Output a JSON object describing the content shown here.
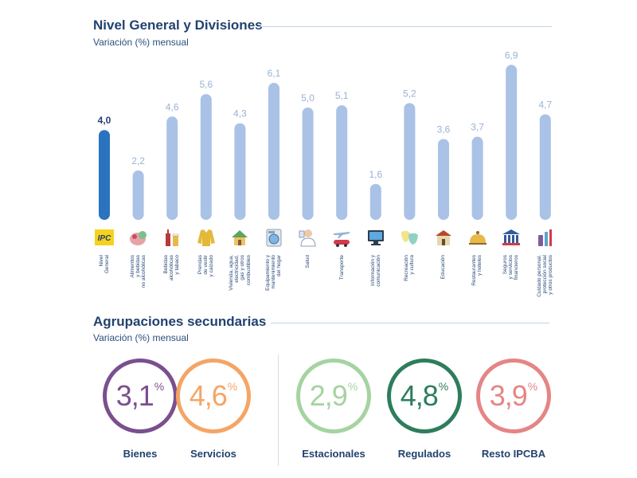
{
  "header": {
    "title": "Nivel General y Divisiones",
    "subtitle": "Variación (%) mensual"
  },
  "chart_data": {
    "type": "bar",
    "categories": [
      "Nivel\nGeneral",
      "Alimentos\ny bebidas\nno alcohólicas",
      "Bebidas\nalcohólicas\ny tabaco",
      "Prendas\nde vestir\ny calzado",
      "Vivienda, agua,\nelectricidad,\ngas y otros\ncombustibles",
      "Equipamiento y\nmantenimiento\ndel hogar",
      "Salud",
      "Transporte",
      "Información y\ncomunicación",
      "Recreación\ny cultura",
      "Educación",
      "Restaurantes\ny hoteles",
      "Seguros\ny servicios\nfinancieros",
      "Cuidado personal,\nprotección social\ny otros productos"
    ],
    "values": [
      4.0,
      2.2,
      4.6,
      5.6,
      4.3,
      6.1,
      5.0,
      5.1,
      1.6,
      5.2,
      3.6,
      3.7,
      6.9,
      4.7
    ],
    "value_labels": [
      "4,0",
      "2,2",
      "4,6",
      "5,6",
      "4,3",
      "6,1",
      "5,0",
      "5,1",
      "1,6",
      "5,2",
      "3,6",
      "3,7",
      "6,9",
      "4,7"
    ],
    "highlight_index": 0,
    "ylim": [
      0,
      7
    ],
    "grid": false,
    "colors": {
      "highlight": "#2a73be",
      "highlight_label": "#1f3f73",
      "bar": "#a9c2e6",
      "bar_label": "#9ab1d6"
    },
    "icons": [
      "ipc-logo-icon",
      "food-icon",
      "bottle-icon",
      "jacket-icon",
      "house-icon",
      "washing-machine-icon",
      "doctor-icon",
      "airplane-car-icon",
      "computer-icon",
      "masks-icon",
      "school-icon",
      "cloche-icon",
      "bank-icon",
      "toiletries-icon"
    ],
    "icon_text": {
      "ipc": "IPC"
    }
  },
  "secondary": {
    "title": "Agrupaciones secundarias",
    "subtitle": "Variación (%) mensual",
    "items": [
      {
        "value": "3,1",
        "pct": "%",
        "label": "Bienes",
        "color": "#7b4f8f"
      },
      {
        "value": "4,6",
        "pct": "%",
        "label": "Servicios",
        "color": "#f4a566"
      },
      {
        "value": "2,9",
        "pct": "%",
        "label": "Estacionales",
        "color": "#a5d3a1"
      },
      {
        "value": "4,8",
        "pct": "%",
        "label": "Regulados",
        "color": "#2e7d5c"
      },
      {
        "value": "3,9",
        "pct": "%",
        "label": "Resto IPCBA",
        "color": "#e58585"
      }
    ]
  }
}
